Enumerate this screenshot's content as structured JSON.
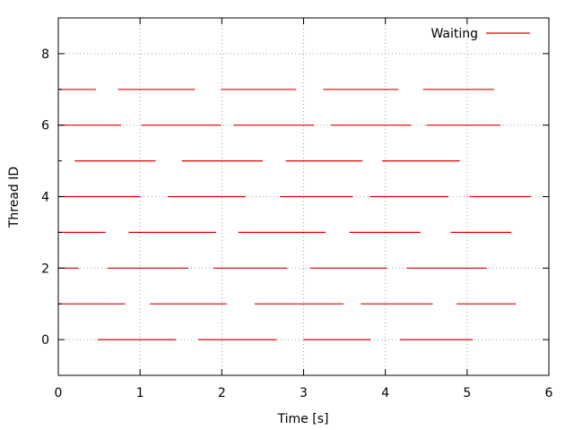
{
  "chart_data": {
    "type": "gantt",
    "title": "",
    "xlabel": "Time [s]",
    "ylabel": "Thread ID",
    "xlim": [
      0,
      6
    ],
    "ylim": [
      -1,
      9
    ],
    "xticks": [
      "0",
      "1",
      "2",
      "3",
      "4",
      "5",
      "6"
    ],
    "yticks": [
      "0",
      "2",
      "4",
      "6",
      "8"
    ],
    "grid": true,
    "legend_position": "top-right",
    "series": [
      {
        "name": "Waiting",
        "color": "#dd0000",
        "segments": [
          {
            "thread": 0,
            "start": 0.48,
            "end": 1.44
          },
          {
            "thread": 0,
            "start": 1.71,
            "end": 2.67
          },
          {
            "thread": 0,
            "start": 3.0,
            "end": 3.82
          },
          {
            "thread": 0,
            "start": 4.18,
            "end": 5.07
          },
          {
            "thread": 1,
            "start": 0.0,
            "end": 0.82
          },
          {
            "thread": 1,
            "start": 1.12,
            "end": 2.06
          },
          {
            "thread": 1,
            "start": 2.4,
            "end": 3.49
          },
          {
            "thread": 1,
            "start": 3.7,
            "end": 4.58
          },
          {
            "thread": 1,
            "start": 4.87,
            "end": 5.6
          },
          {
            "thread": 2,
            "start": 0.0,
            "end": 0.25
          },
          {
            "thread": 2,
            "start": 0.6,
            "end": 1.59
          },
          {
            "thread": 2,
            "start": 1.9,
            "end": 2.8
          },
          {
            "thread": 2,
            "start": 3.08,
            "end": 4.02
          },
          {
            "thread": 2,
            "start": 4.26,
            "end": 5.24
          },
          {
            "thread": 3,
            "start": 0.0,
            "end": 0.58
          },
          {
            "thread": 3,
            "start": 0.86,
            "end": 1.93
          },
          {
            "thread": 3,
            "start": 2.2,
            "end": 3.27
          },
          {
            "thread": 3,
            "start": 3.56,
            "end": 4.43
          },
          {
            "thread": 3,
            "start": 4.8,
            "end": 5.54
          },
          {
            "thread": 4,
            "start": 0.0,
            "end": 1.0
          },
          {
            "thread": 4,
            "start": 1.34,
            "end": 2.29
          },
          {
            "thread": 4,
            "start": 2.71,
            "end": 3.6
          },
          {
            "thread": 4,
            "start": 3.81,
            "end": 4.77
          },
          {
            "thread": 4,
            "start": 5.03,
            "end": 5.78
          },
          {
            "thread": 5,
            "start": 0.2,
            "end": 1.19
          },
          {
            "thread": 5,
            "start": 1.51,
            "end": 2.5
          },
          {
            "thread": 5,
            "start": 2.78,
            "end": 3.72
          },
          {
            "thread": 5,
            "start": 3.96,
            "end": 4.91
          },
          {
            "thread": 6,
            "start": 0.0,
            "end": 0.77
          },
          {
            "thread": 6,
            "start": 1.02,
            "end": 1.99
          },
          {
            "thread": 6,
            "start": 2.14,
            "end": 3.13
          },
          {
            "thread": 6,
            "start": 3.33,
            "end": 4.32
          },
          {
            "thread": 6,
            "start": 4.5,
            "end": 5.41
          },
          {
            "thread": 7,
            "start": 0.0,
            "end": 0.46
          },
          {
            "thread": 7,
            "start": 0.73,
            "end": 1.67
          },
          {
            "thread": 7,
            "start": 1.99,
            "end": 2.91
          },
          {
            "thread": 7,
            "start": 3.24,
            "end": 4.16
          },
          {
            "thread": 7,
            "start": 4.46,
            "end": 5.33
          }
        ]
      }
    ]
  }
}
